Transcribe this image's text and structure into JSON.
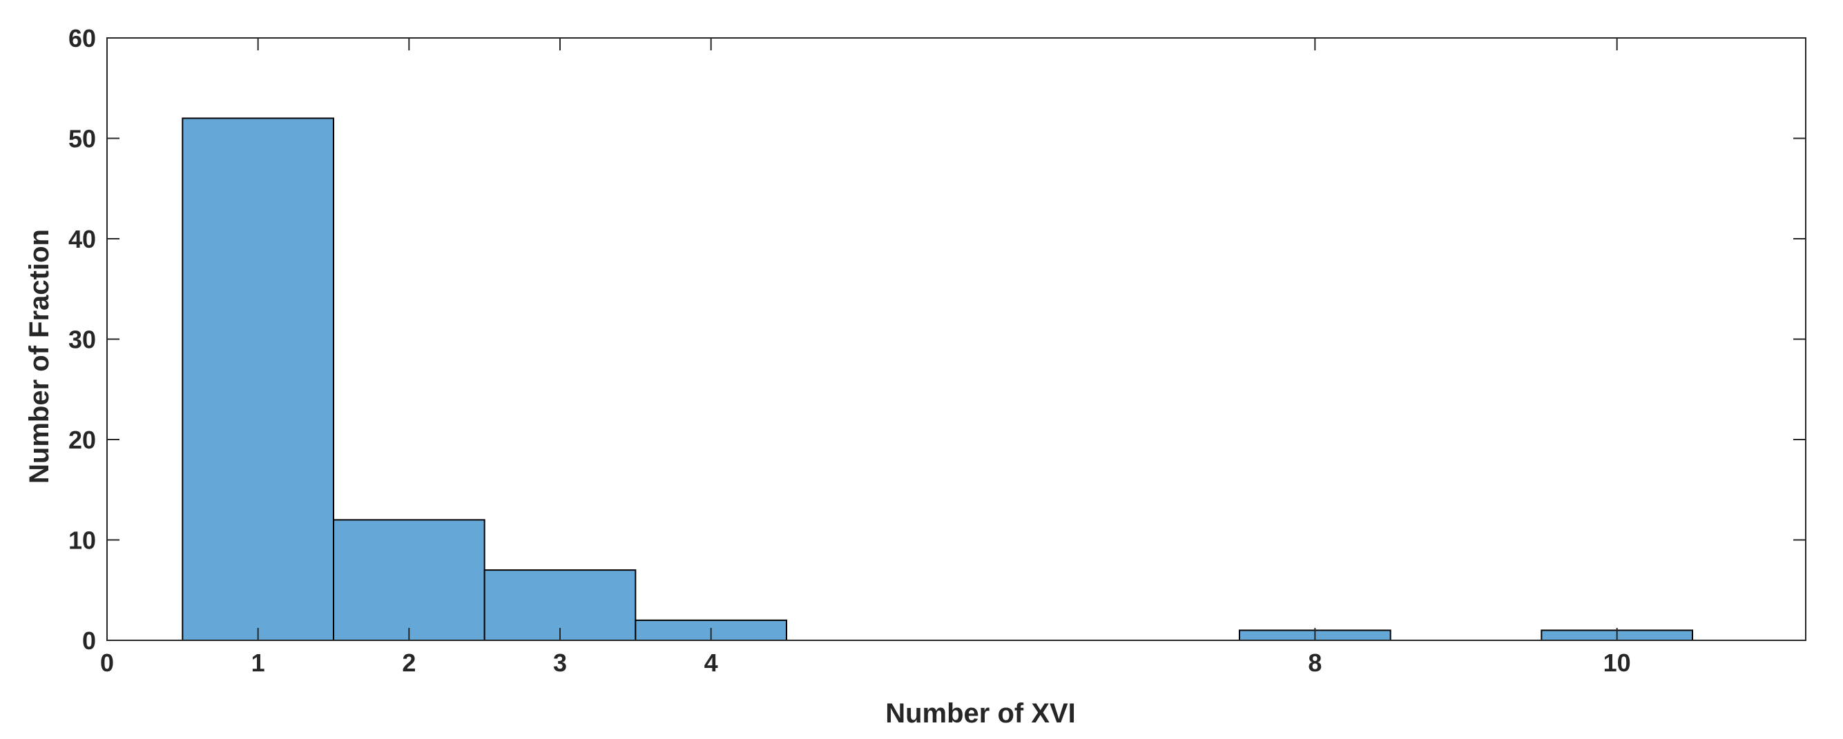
{
  "chart_data": {
    "type": "bar",
    "title": "",
    "xlabel": "Number of XVI",
    "ylabel": "Number of Fraction",
    "xlim": [
      0,
      11.25
    ],
    "ylim": [
      0,
      60
    ],
    "x_ticks": [
      0,
      1,
      2,
      3,
      4,
      8,
      10
    ],
    "y_ticks": [
      0,
      10,
      20,
      30,
      40,
      50,
      60
    ],
    "bin_width": 1,
    "bars": [
      {
        "x": 1,
        "value": 52
      },
      {
        "x": 2,
        "value": 12
      },
      {
        "x": 3,
        "value": 7
      },
      {
        "x": 4,
        "value": 2
      },
      {
        "x": 8,
        "value": 1
      },
      {
        "x": 10,
        "value": 1
      }
    ],
    "bar_color": "#65a8d7",
    "edge_color": "#000000",
    "axis_color": "#262626",
    "grid": false,
    "box": true
  }
}
